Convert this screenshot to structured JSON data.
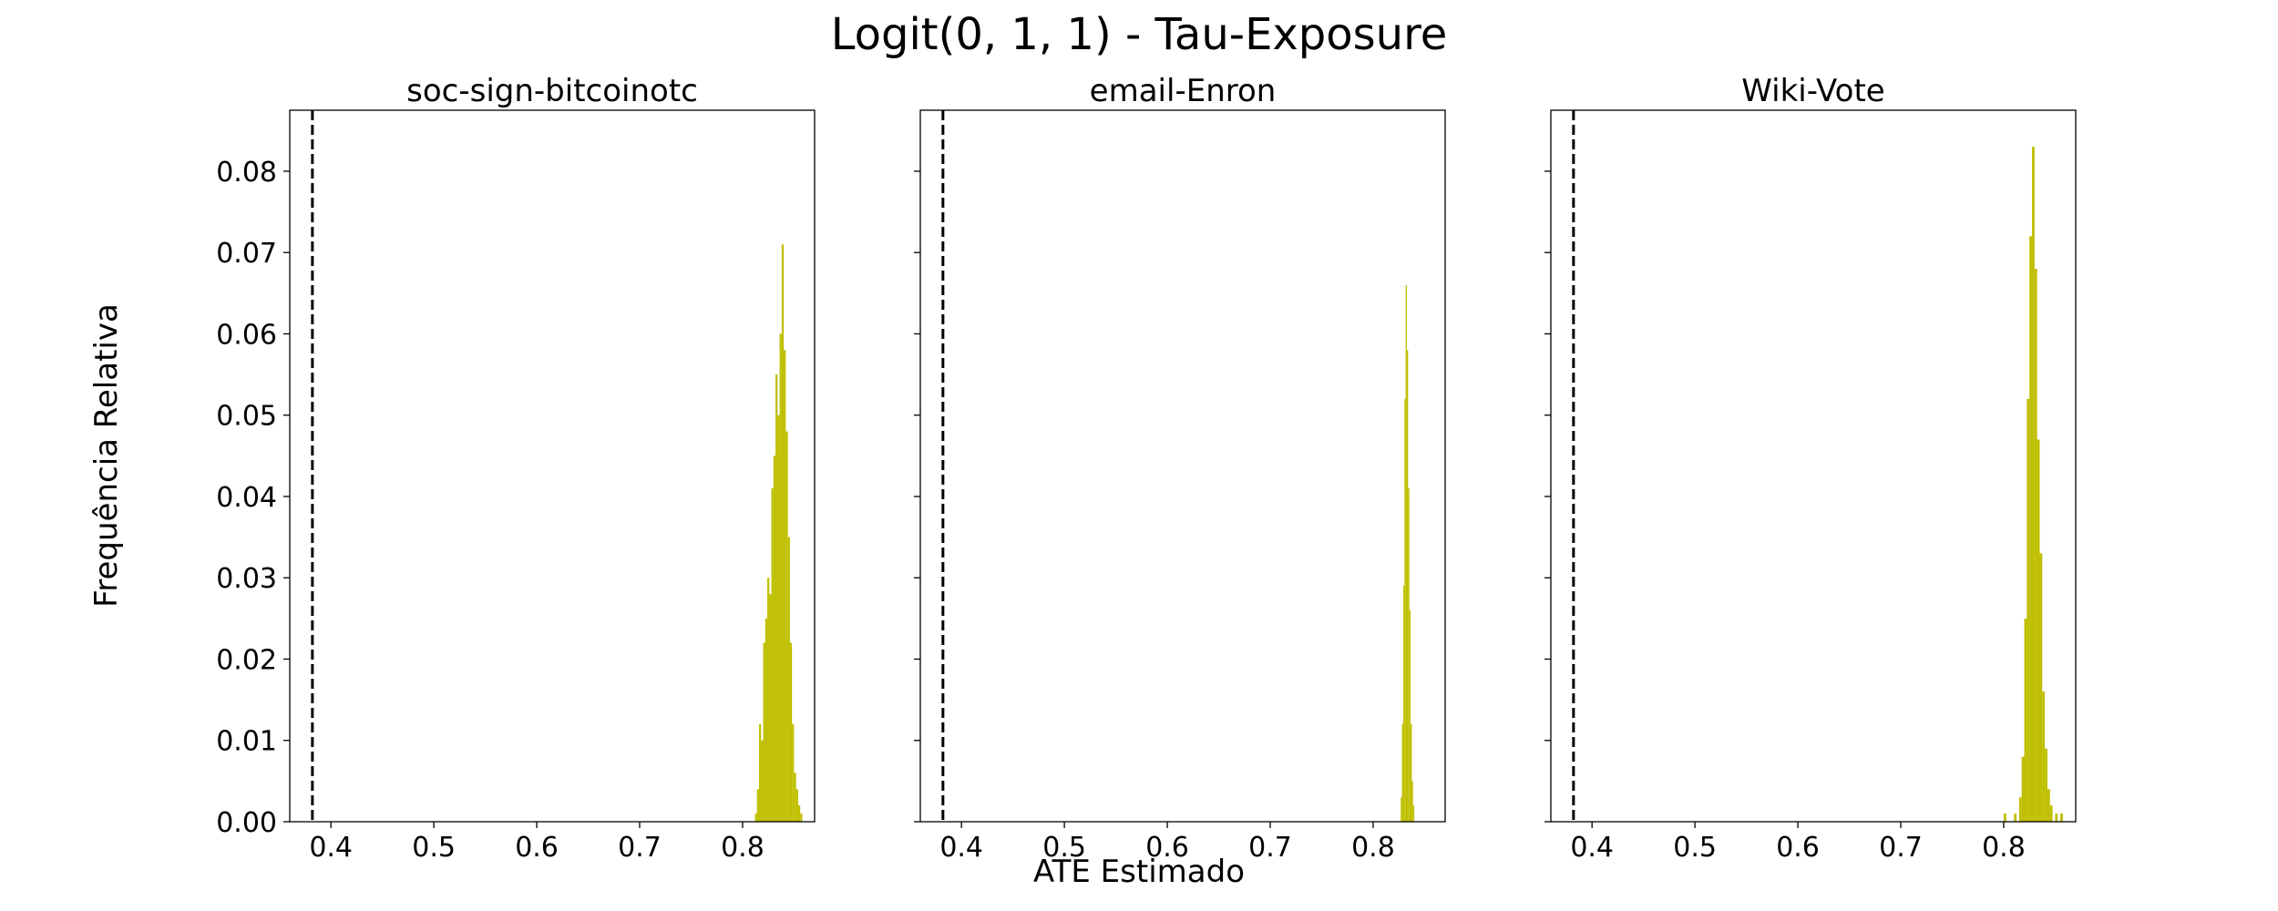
{
  "figure": {
    "suptitle": "Logit(0, 1, 1) - Tau-Exposure",
    "xlabel": "ATE Estimado",
    "ylabel": "Frequência Relativa"
  },
  "colors": {
    "bars": "#bfbf00",
    "reference_line": "#000000",
    "axes": "#000000"
  },
  "chart_data": [
    {
      "type": "histogram",
      "title": "soc-sign-bitcoinotc",
      "xlim": [
        0.36,
        0.87
      ],
      "ylim": [
        0,
        0.0875
      ],
      "xticks": [
        "0.4",
        "0.5",
        "0.6",
        "0.7",
        "0.8"
      ],
      "yticks": [
        "0.00",
        "0.01",
        "0.02",
        "0.03",
        "0.04",
        "0.05",
        "0.06",
        "0.07",
        "0.08"
      ],
      "show_ytick_labels": true,
      "reference_line_x": 0.382,
      "bin_width": 0.002,
      "bins": [
        [
          0.812,
          0.001
        ],
        [
          0.814,
          0.004
        ],
        [
          0.816,
          0.012
        ],
        [
          0.818,
          0.01
        ],
        [
          0.82,
          0.022
        ],
        [
          0.822,
          0.025
        ],
        [
          0.824,
          0.03
        ],
        [
          0.826,
          0.028
        ],
        [
          0.828,
          0.041
        ],
        [
          0.83,
          0.045
        ],
        [
          0.832,
          0.055
        ],
        [
          0.834,
          0.05
        ],
        [
          0.836,
          0.06
        ],
        [
          0.838,
          0.071
        ],
        [
          0.84,
          0.058
        ],
        [
          0.842,
          0.048
        ],
        [
          0.844,
          0.035
        ],
        [
          0.846,
          0.022
        ],
        [
          0.848,
          0.012
        ],
        [
          0.85,
          0.006
        ],
        [
          0.852,
          0.004
        ],
        [
          0.854,
          0.002
        ],
        [
          0.856,
          0.001
        ]
      ]
    },
    {
      "type": "histogram",
      "title": "email-Enron",
      "xlim": [
        0.36,
        0.87
      ],
      "ylim": [
        0,
        0.0875
      ],
      "xticks": [
        "0.4",
        "0.5",
        "0.6",
        "0.7",
        "0.8"
      ],
      "yticks": [
        "0.00",
        "0.01",
        "0.02",
        "0.03",
        "0.04",
        "0.05",
        "0.06",
        "0.07",
        "0.08"
      ],
      "show_ytick_labels": false,
      "reference_line_x": 0.382,
      "bin_width": 0.0012,
      "bins": [
        [
          0.8268,
          0.003
        ],
        [
          0.828,
          0.012
        ],
        [
          0.8292,
          0.029
        ],
        [
          0.8304,
          0.052
        ],
        [
          0.8316,
          0.066
        ],
        [
          0.8328,
          0.058
        ],
        [
          0.834,
          0.041
        ],
        [
          0.8352,
          0.026
        ],
        [
          0.8364,
          0.012
        ],
        [
          0.8376,
          0.005
        ],
        [
          0.8388,
          0.002
        ]
      ]
    },
    {
      "type": "histogram",
      "title": "Wiki-Vote",
      "xlim": [
        0.36,
        0.87
      ],
      "ylim": [
        0,
        0.0875
      ],
      "xticks": [
        "0.4",
        "0.5",
        "0.6",
        "0.7",
        "0.8"
      ],
      "yticks": [
        "0.00",
        "0.01",
        "0.02",
        "0.03",
        "0.04",
        "0.05",
        "0.06",
        "0.07",
        "0.08"
      ],
      "show_ytick_labels": false,
      "reference_line_x": 0.382,
      "bin_width": 0.0025,
      "bins": [
        [
          0.8,
          0.001
        ],
        [
          0.81,
          0.001
        ],
        [
          0.815,
          0.003
        ],
        [
          0.8175,
          0.008
        ],
        [
          0.82,
          0.025
        ],
        [
          0.8225,
          0.052
        ],
        [
          0.825,
          0.072
        ],
        [
          0.8275,
          0.083
        ],
        [
          0.83,
          0.068
        ],
        [
          0.8325,
          0.047
        ],
        [
          0.835,
          0.033
        ],
        [
          0.8375,
          0.016
        ],
        [
          0.84,
          0.009
        ],
        [
          0.8425,
          0.004
        ],
        [
          0.845,
          0.002
        ],
        [
          0.85,
          0.001
        ],
        [
          0.855,
          0.001
        ]
      ]
    }
  ]
}
